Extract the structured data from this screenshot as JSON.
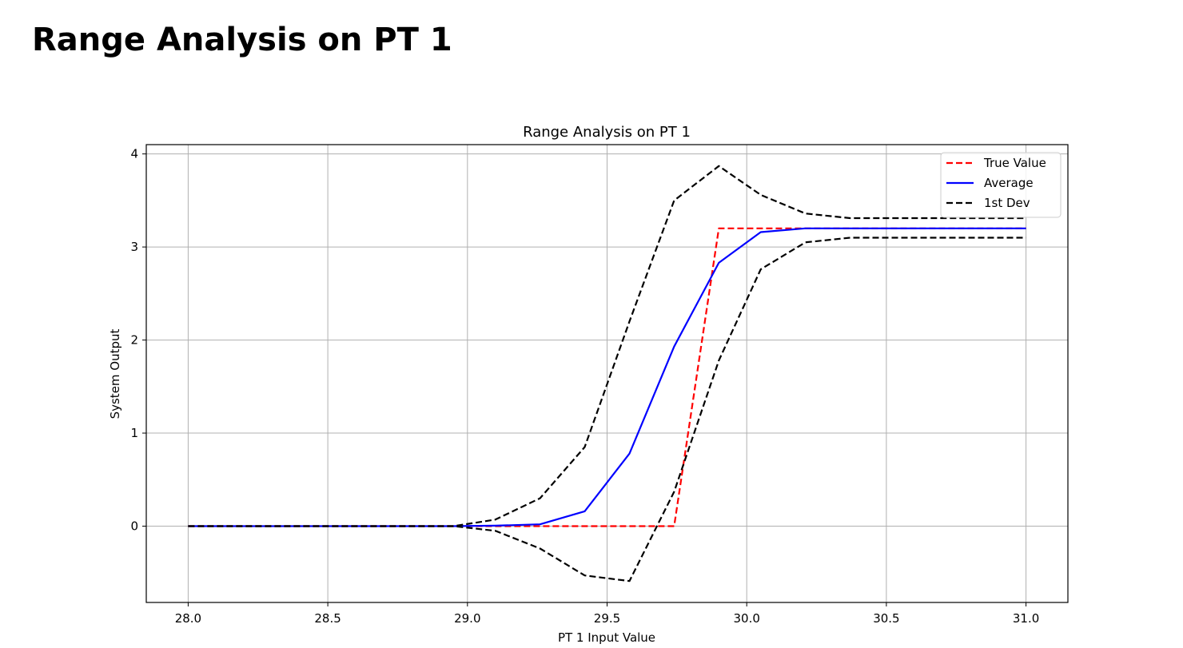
{
  "page": {
    "heading": "Range Analysis on PT 1"
  },
  "chart_data": {
    "type": "line",
    "title": "Range Analysis on PT 1",
    "xlabel": "PT 1 Input Value",
    "ylabel": "System Output",
    "xlim": [
      27.85,
      31.15
    ],
    "ylim": [
      -0.82,
      4.1
    ],
    "xticks": [
      "28.0",
      "28.5",
      "29.0",
      "29.5",
      "30.0",
      "30.5",
      "31.0"
    ],
    "yticks": [
      "0",
      "1",
      "2",
      "3",
      "4"
    ],
    "grid": true,
    "legend_position": "top-right",
    "series": [
      {
        "name": "True Value",
        "style": "dashed",
        "color": "#ff0000",
        "points": [
          [
            28.0,
            0
          ],
          [
            29.74,
            0
          ],
          [
            29.9,
            3.2
          ],
          [
            31.0,
            3.2
          ]
        ]
      },
      {
        "name": "Average",
        "style": "solid",
        "color": "#0000ff",
        "points": [
          [
            28.0,
            0
          ],
          [
            28.95,
            0
          ],
          [
            29.1,
            0.005
          ],
          [
            29.26,
            0.02
          ],
          [
            29.42,
            0.16
          ],
          [
            29.58,
            0.78
          ],
          [
            29.74,
            1.93
          ],
          [
            29.9,
            2.83
          ],
          [
            30.05,
            3.16
          ],
          [
            30.21,
            3.2
          ],
          [
            30.37,
            3.2
          ],
          [
            31.0,
            3.2
          ]
        ]
      },
      {
        "name": "1st Dev",
        "style": "dashed",
        "color": "#000000",
        "points": [
          [
            28.0,
            0
          ],
          [
            28.95,
            0
          ],
          [
            29.1,
            0.07
          ],
          [
            29.26,
            0.3
          ],
          [
            29.42,
            0.85
          ],
          [
            29.58,
            2.2
          ],
          [
            29.74,
            3.5
          ],
          [
            29.9,
            3.87
          ],
          [
            30.05,
            3.56
          ],
          [
            30.21,
            3.36
          ],
          [
            30.37,
            3.31
          ],
          [
            31.0,
            3.31
          ]
        ]
      },
      {
        "name": "",
        "style": "dashed",
        "color": "#000000",
        "points": [
          [
            28.0,
            0
          ],
          [
            28.95,
            0
          ],
          [
            29.1,
            -0.05
          ],
          [
            29.26,
            -0.24
          ],
          [
            29.42,
            -0.53
          ],
          [
            29.58,
            -0.59
          ],
          [
            29.74,
            0.37
          ],
          [
            29.9,
            1.78
          ],
          [
            30.05,
            2.76
          ],
          [
            30.21,
            3.05
          ],
          [
            30.37,
            3.1
          ],
          [
            31.0,
            3.1
          ]
        ]
      }
    ]
  }
}
